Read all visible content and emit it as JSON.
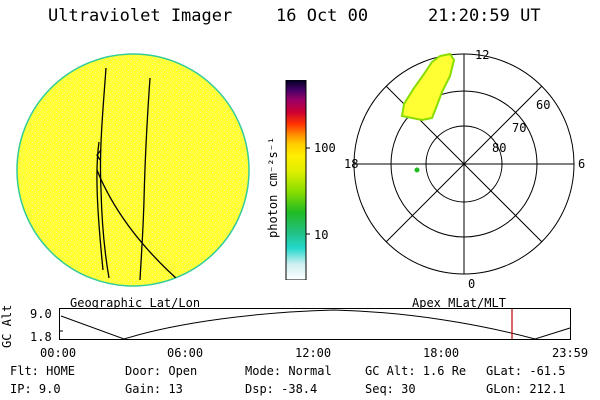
{
  "header": {
    "instrument": "Ultraviolet Imager",
    "date": "16 Oct 00",
    "time": "21:20:59 UT"
  },
  "left_panel": {
    "caption": "Geographic Lat/Lon"
  },
  "right_panel": {
    "caption": "Apex MLat/MLT",
    "mlt_labels": {
      "top": "12",
      "bottom": "0",
      "left": "18",
      "right": "6"
    },
    "mlat_labels": [
      "60",
      "70",
      "80"
    ]
  },
  "colorbar": {
    "unit": "photon cm⁻²s⁻¹",
    "ticks": [
      "100",
      "10"
    ]
  },
  "altitude_plot": {
    "ylabel": "GC Alt",
    "yticks": [
      "9.0",
      "1.8"
    ],
    "xticks": [
      "00:00",
      "06:00",
      "12:00",
      "18:00",
      "23:59"
    ],
    "marker_color": "#c00000"
  },
  "info": {
    "row1": {
      "flt": "Flt: HOME",
      "door": "Door: Open",
      "mode": "Mode: Normal",
      "gc_alt": "GC Alt: 1.6 Re",
      "glat": "GLat: -61.5"
    },
    "row2": {
      "ip": "IP: 9.0",
      "gain": "Gain: 13",
      "dsp": "Dsp: -38.4",
      "seq": "Seq: 30",
      "glon": "GLon: 212.1"
    }
  },
  "colors": {
    "disk_fill": "#ffff33",
    "disk_edge": "#33cc99",
    "aurora_fill": "#ffff33"
  }
}
